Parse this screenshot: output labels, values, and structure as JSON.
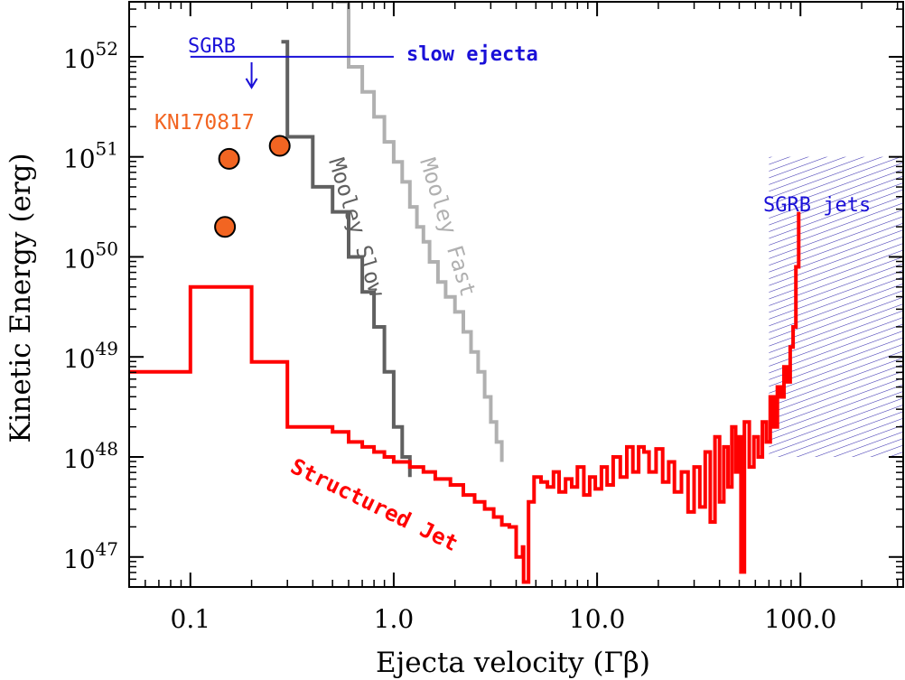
{
  "chart_data": {
    "type": "line",
    "xscale": "log",
    "yscale": "log",
    "xlabel": "Ejecta velocity (Γβ)",
    "ylabel": "Kinetic Energy (erg)",
    "xlim": [
      0.05,
      320
    ],
    "ylim_log10": [
      46.7,
      52.55
    ],
    "x_ticks": [
      {
        "value": 0.1,
        "label": "0.1"
      },
      {
        "value": 1.0,
        "label": "1.0"
      },
      {
        "value": 10.0,
        "label": "10.0"
      },
      {
        "value": 100.0,
        "label": "100.0"
      }
    ],
    "y_ticks": [
      {
        "exp": 47,
        "base": "10",
        "sup": "47"
      },
      {
        "exp": 48,
        "base": "10",
        "sup": "48"
      },
      {
        "exp": 49,
        "base": "10",
        "sup": "49"
      },
      {
        "exp": 50,
        "base": "10",
        "sup": "50"
      },
      {
        "exp": 51,
        "base": "10",
        "sup": "51"
      },
      {
        "exp": 52,
        "base": "10",
        "sup": "52"
      }
    ],
    "colors": {
      "structured_jet": "#ff0000",
      "mooley_slow": "#606060",
      "mooley_fast": "#b0b0b0",
      "kn": "#f26522",
      "sgrb": "#1a10d8",
      "hatch": "#3a30b0"
    },
    "series": [
      {
        "name": "Structured Jet",
        "label": "Structured Jet",
        "style": "steps",
        "points": [
          [
            0.05,
            48.85
          ],
          [
            0.1,
            48.85
          ],
          [
            0.1,
            49.7
          ],
          [
            0.2,
            49.7
          ],
          [
            0.2,
            48.95
          ],
          [
            0.3,
            48.95
          ],
          [
            0.3,
            48.3
          ],
          [
            0.5,
            48.25
          ],
          [
            0.6,
            48.15
          ],
          [
            0.7,
            48.1
          ],
          [
            0.8,
            48.05
          ],
          [
            0.9,
            48.0
          ],
          [
            1.0,
            47.95
          ],
          [
            1.2,
            47.9
          ],
          [
            1.4,
            47.85
          ],
          [
            1.6,
            47.78
          ],
          [
            1.9,
            47.72
          ],
          [
            2.2,
            47.62
          ],
          [
            2.5,
            47.55
          ],
          [
            2.8,
            47.48
          ],
          [
            3.1,
            47.4
          ],
          [
            3.4,
            47.32
          ],
          [
            3.7,
            47.3
          ],
          [
            4.0,
            47.0
          ],
          [
            4.3,
            47.1
          ],
          [
            4.35,
            46.75
          ],
          [
            4.6,
            47.55
          ],
          [
            4.9,
            47.8
          ],
          [
            5.3,
            47.75
          ],
          [
            5.7,
            47.7
          ],
          [
            6.1,
            47.85
          ],
          [
            6.5,
            47.65
          ],
          [
            7.0,
            47.78
          ],
          [
            7.5,
            47.7
          ],
          [
            8.0,
            47.9
          ],
          [
            8.6,
            47.62
          ],
          [
            9.2,
            47.8
          ],
          [
            9.8,
            47.68
          ],
          [
            10.5,
            47.9
          ],
          [
            11.2,
            47.72
          ],
          [
            12.0,
            48.0
          ],
          [
            13.0,
            47.8
          ],
          [
            14.0,
            48.1
          ],
          [
            15.0,
            47.85
          ],
          [
            16.0,
            48.1
          ],
          [
            17.0,
            48.05
          ],
          [
            18.0,
            47.85
          ],
          [
            19.5,
            48.08
          ],
          [
            21.0,
            47.75
          ],
          [
            22.5,
            47.95
          ],
          [
            24.0,
            47.65
          ],
          [
            26.0,
            47.85
          ],
          [
            28.0,
            47.45
          ],
          [
            30.0,
            47.9
          ],
          [
            32.0,
            47.5
          ],
          [
            34.0,
            48.05
          ],
          [
            36.0,
            47.35
          ],
          [
            38.0,
            48.2
          ],
          [
            40.0,
            47.55
          ],
          [
            42.0,
            48.1
          ],
          [
            44.0,
            47.7
          ],
          [
            46.0,
            48.3
          ],
          [
            48.0,
            47.85
          ],
          [
            50.0,
            48.2
          ],
          [
            51.0,
            46.85
          ],
          [
            53.0,
            48.35
          ],
          [
            56.0,
            47.9
          ],
          [
            59.0,
            48.2
          ],
          [
            62.0,
            48.0
          ],
          [
            65.0,
            48.35
          ],
          [
            68.0,
            48.15
          ],
          [
            71.0,
            48.6
          ],
          [
            74.0,
            48.3
          ],
          [
            77.0,
            48.7
          ],
          [
            80.0,
            48.6
          ],
          [
            83.0,
            48.9
          ],
          [
            86.0,
            48.75
          ],
          [
            89.0,
            49.1
          ],
          [
            92.0,
            49.3
          ],
          [
            95.0,
            49.9
          ],
          [
            98.0,
            50.45
          ]
        ]
      },
      {
        "name": "Mooley Slow",
        "label": "Mooley Slow",
        "style": "steps",
        "points": [
          [
            0.28,
            52.15
          ],
          [
            0.3,
            52.15
          ],
          [
            0.3,
            51.2
          ],
          [
            0.4,
            51.2
          ],
          [
            0.4,
            50.7
          ],
          [
            0.5,
            50.7
          ],
          [
            0.5,
            50.45
          ],
          [
            0.6,
            50.45
          ],
          [
            0.6,
            50.0
          ],
          [
            0.7,
            50.0
          ],
          [
            0.7,
            49.65
          ],
          [
            0.8,
            49.65
          ],
          [
            0.8,
            49.3
          ],
          [
            0.9,
            49.3
          ],
          [
            0.9,
            48.85
          ],
          [
            1.0,
            48.85
          ],
          [
            1.0,
            48.3
          ],
          [
            1.1,
            48.3
          ],
          [
            1.1,
            48.0
          ],
          [
            1.2,
            48.0
          ],
          [
            1.2,
            47.8
          ]
        ]
      },
      {
        "name": "Mooley Fast",
        "label": "Mooley Fast",
        "style": "steps",
        "points": [
          [
            0.52,
            52.55
          ],
          [
            0.6,
            52.55
          ],
          [
            0.6,
            51.9
          ],
          [
            0.7,
            51.9
          ],
          [
            0.7,
            51.65
          ],
          [
            0.8,
            51.65
          ],
          [
            0.8,
            51.4
          ],
          [
            0.9,
            51.4
          ],
          [
            0.9,
            51.15
          ],
          [
            1.0,
            51.15
          ],
          [
            1.0,
            50.95
          ],
          [
            1.1,
            50.95
          ],
          [
            1.1,
            50.75
          ],
          [
            1.2,
            50.75
          ],
          [
            1.2,
            50.5
          ],
          [
            1.3,
            50.5
          ],
          [
            1.3,
            50.3
          ],
          [
            1.4,
            50.3
          ],
          [
            1.4,
            50.15
          ],
          [
            1.5,
            50.15
          ],
          [
            1.5,
            49.95
          ],
          [
            1.65,
            49.95
          ],
          [
            1.65,
            49.75
          ],
          [
            1.8,
            49.75
          ],
          [
            1.8,
            49.6
          ],
          [
            2.0,
            49.6
          ],
          [
            2.0,
            49.45
          ],
          [
            2.2,
            49.45
          ],
          [
            2.2,
            49.25
          ],
          [
            2.4,
            49.25
          ],
          [
            2.4,
            49.05
          ],
          [
            2.6,
            49.05
          ],
          [
            2.6,
            48.85
          ],
          [
            2.8,
            48.85
          ],
          [
            2.8,
            48.6
          ],
          [
            3.0,
            48.6
          ],
          [
            3.0,
            48.35
          ],
          [
            3.2,
            48.35
          ],
          [
            3.2,
            48.15
          ],
          [
            3.4,
            48.15
          ],
          [
            3.4,
            47.95
          ]
        ]
      }
    ],
    "points": [
      {
        "name": "KN170817",
        "x": 0.148,
        "y_log10": 50.3
      },
      {
        "name": "KN170817",
        "x": 0.155,
        "y_log10": 50.98
      },
      {
        "name": "KN170817",
        "x": 0.275,
        "y_log10": 51.11
      }
    ],
    "sgrb_limit": {
      "x_start": 0.1,
      "x_end": 1.0,
      "y_log10": 52.0,
      "arrow_x": 0.2
    },
    "hatch_region": {
      "x_start": 70,
      "x_end": 320,
      "y_log10_low": 48.0,
      "y_log10_high": 51.0
    },
    "annotations": {
      "sgrb": "SGRB",
      "slow_ejecta": "slow ejecta",
      "kn": "KN170817",
      "sgrb_jets": "SGRB jets",
      "mooley_slow": "Mooley Slow",
      "mooley_fast": "Mooley Fast",
      "structured_jet": "Structured Jet"
    }
  }
}
